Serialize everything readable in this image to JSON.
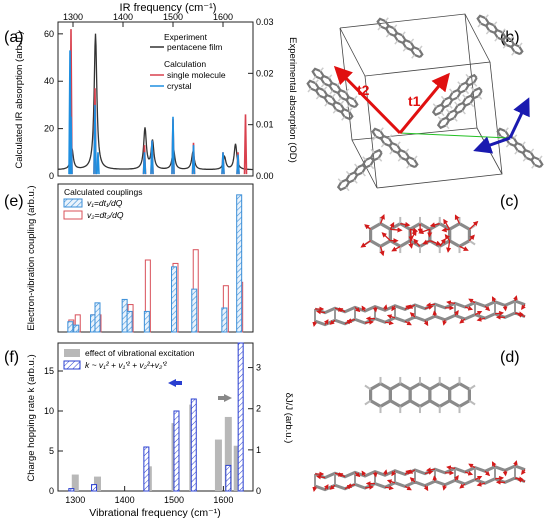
{
  "panel_labels": {
    "a": "(a)",
    "b": "(b)",
    "c": "(c)",
    "d": "(d)",
    "e": "(e)",
    "f": "(f)"
  },
  "panel_a": {
    "top_axis_label": "IR frequency (cm⁻¹)",
    "top_ticks": [
      "1300",
      "1400",
      "1500",
      "1600"
    ],
    "ylabel_left": "Calculated IR absorption (arb.u.)",
    "ylabel_right": "Experimental absorption (OD)",
    "left_ticks": [
      "0",
      "20",
      "40",
      "60"
    ],
    "right_ticks": [
      "0.00",
      "0.01",
      "0.02",
      "0.03"
    ],
    "legend": {
      "experiment_header": "Experiment",
      "experiment_item": "pentacene film",
      "calculation_header": "Calculation",
      "calc_item_1": "single molecule",
      "calc_item_2": "crystal"
    },
    "colors": {
      "experiment": "#333333",
      "single_molecule": "#d9414e",
      "crystal": "#1f8fe0"
    }
  },
  "panel_b": {
    "t1": "t1",
    "t2": "t2",
    "colors": {
      "t_arrows": "#e01010",
      "axis_blue": "#1a1ab0",
      "axis_green": "#22c022"
    }
  },
  "panel_e": {
    "ylabel": "Electron-vibration coupling (arb.u.)",
    "legend_title": "Calculated couplings",
    "legend_1": "v₁=dt₁/dQ",
    "legend_2": "v₂=dt₂/dQ",
    "colors": {
      "v1": "#3b8fd8",
      "v2": "#d8505a"
    }
  },
  "panel_f": {
    "ylabel_left": "Charge hopping rate k (arb.u.)",
    "ylabel_right": "δJ/J  (arb.u.)",
    "left_ticks": [
      "0",
      "5",
      "10",
      "15"
    ],
    "right_ticks": [
      "0",
      "1",
      "2",
      "3"
    ],
    "legend_1": "effect of vibrational excitation",
    "legend_2": "k ~ v₁² + v₁′² + v₂²+v₂′²",
    "xlabel": "Vibrational frequency (cm⁻¹)",
    "x_ticks": [
      "1300",
      "1400",
      "1500",
      "1600"
    ],
    "colors": {
      "gray": "#b8b8b8",
      "blue": "#2a3fd0"
    }
  },
  "chart_data": [
    {
      "type": "line",
      "panel": "a",
      "xlim": [
        1270,
        1660
      ],
      "ylim_left": [
        0,
        65
      ],
      "ylim_right": [
        0,
        0.03
      ],
      "series": [
        {
          "name": "single molecule",
          "kind": "sticks",
          "x": [
            1296,
            1344,
            1443,
            1458,
            1500,
            1541,
            1600,
            1630,
            1645
          ],
          "values": [
            62,
            37,
            13,
            15,
            24,
            14,
            10,
            10,
            26
          ]
        },
        {
          "name": "crystal",
          "kind": "sticks",
          "x": [
            1294,
            1296,
            1344,
            1350,
            1443,
            1458,
            1500,
            1541,
            1600,
            1630
          ],
          "values": [
            53,
            25,
            30,
            10,
            10,
            15,
            25,
            13,
            10,
            9
          ]
        },
        {
          "name": "pentacene film",
          "kind": "curve",
          "axis": "right",
          "peaks_x": [
            1298,
            1345,
            1444,
            1459,
            1501,
            1540,
            1603,
            1625
          ],
          "peaks_y": [
            0.004,
            0.0265,
            0.008,
            0.0055,
            0.004,
            0.0035,
            0.0025,
            0.005
          ],
          "baseline": 0.0012
        }
      ]
    },
    {
      "type": "bar",
      "panel": "e",
      "xlim": [
        1265,
        1660
      ],
      "ylim": [
        0,
        4.2
      ],
      "series": [
        {
          "name": "v₁=dt₁/dQ",
          "x": [
            1290,
            1302,
            1336,
            1345,
            1400,
            1410,
            1445,
            1500,
            1541,
            1602,
            1632
          ],
          "values": [
            0.3,
            0.2,
            0.5,
            0.85,
            0.95,
            0.6,
            0.6,
            1.9,
            1.25,
            0.7,
            4.0
          ]
        },
        {
          "name": "v₂=dt₂/dQ",
          "x": [
            1292,
            1305,
            1338,
            1347,
            1403,
            1412,
            1447,
            1503,
            1544,
            1605,
            1634
          ],
          "values": [
            0.35,
            0.5,
            0.5,
            0.5,
            0.6,
            0.8,
            2.1,
            2.0,
            2.4,
            1.35,
            1.45
          ]
        }
      ]
    },
    {
      "type": "bar",
      "panel": "f",
      "xlim": [
        1265,
        1660
      ],
      "ylim_left": [
        0,
        18
      ],
      "ylim_right": [
        0,
        3.5
      ],
      "x_ticks": [
        1300,
        1400,
        1500,
        1600
      ],
      "series": [
        {
          "name": "effect of vibrational excitation",
          "axis": "right",
          "x": [
            1300,
            1345,
            1448,
            1502,
            1538,
            1590,
            1610,
            1628
          ],
          "values": [
            0.4,
            0.35,
            0.6,
            1.65,
            2.1,
            1.25,
            1.8,
            1.1
          ]
        },
        {
          "name": "k ~ v₁² + v₁′² + v₂²+v₂′²",
          "axis": "left",
          "x": [
            1292,
            1338,
            1444,
            1505,
            1540,
            1610,
            1635
          ],
          "values": [
            0.3,
            0.8,
            5.5,
            10.0,
            11.5,
            3.2,
            18.5
          ]
        }
      ]
    }
  ]
}
